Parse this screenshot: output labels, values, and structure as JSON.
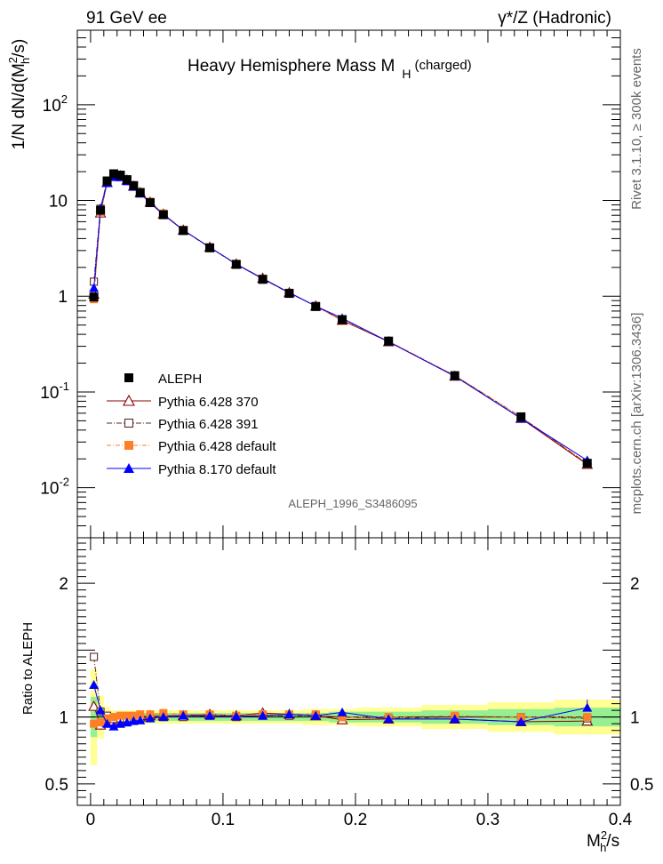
{
  "header": {
    "left": "91 GeV ee",
    "right": "γ*/Z (Hadronic)"
  },
  "side_texts": {
    "rivet": "Rivet 3.1.10, ≥ 300k events",
    "mcplots": "mcplots.cern.ch [arXiv:1306.3436]"
  },
  "chart_data": {
    "type": "line",
    "title": "Heavy Hemisphere Mass M",
    "title_sub": "H",
    "title_suffix": "(charged)",
    "analysis_id": "ALEPH_1996_S3486095",
    "scale": "log",
    "xlim": [
      -0.01,
      0.4
    ],
    "ylim": [
      0.003,
      600
    ],
    "xlabel_main": "M",
    "xlabel_sup": "2",
    "xlabel_sub": "h",
    "xlabel_tail": "/s",
    "ylabel_main": "1/N dN/d(M",
    "ylabel_sup": "2",
    "ylabel_sub": "h",
    "ylabel_tail": "/s)",
    "x_ticks": [
      "0",
      "0.1",
      "0.2",
      "0.3",
      "0.4"
    ],
    "y_ticks": [
      {
        "base": "10",
        "exp": "-2",
        "value": 0.01
      },
      {
        "base": "10",
        "exp": "-1",
        "value": 0.1
      },
      {
        "base": "1",
        "exp": "",
        "value": 1
      },
      {
        "base": "10",
        "exp": "",
        "value": 10
      },
      {
        "base": "10",
        "exp": "2",
        "value": 100
      }
    ],
    "x": [
      0.0025,
      0.0075,
      0.0125,
      0.0175,
      0.0225,
      0.0275,
      0.0325,
      0.0375,
      0.045,
      0.055,
      0.07,
      0.09,
      0.11,
      0.13,
      0.15,
      0.17,
      0.19,
      0.225,
      0.275,
      0.325,
      0.375
    ],
    "series": [
      {
        "name": "ALEPH",
        "color": "#000000",
        "marker": "square-filled",
        "dash": "none",
        "values": [
          0.98,
          7.9,
          16.0,
          19.0,
          18.4,
          16.5,
          14.3,
          12.1,
          9.5,
          7.1,
          4.85,
          3.2,
          2.15,
          1.5,
          1.07,
          0.78,
          0.57,
          0.34,
          0.148,
          0.055,
          0.018
        ]
      },
      {
        "name": "Pythia 6.428 370",
        "color": "#8b0000",
        "marker": "triangle-open",
        "dash": "none",
        "values": [
          1.05,
          7.4,
          15.4,
          18.4,
          18.1,
          16.3,
          14.1,
          12.1,
          9.6,
          7.2,
          4.9,
          3.25,
          2.17,
          1.54,
          1.09,
          0.79,
          0.56,
          0.335,
          0.146,
          0.053,
          0.0175
        ]
      },
      {
        "name": "Pythia 6.428 391",
        "color": "#5a2a2a",
        "marker": "square-open",
        "dash": "6,2,1,2",
        "values": [
          1.42,
          8.2,
          16.1,
          18.7,
          18.2,
          16.3,
          14.1,
          12.0,
          9.5,
          7.15,
          4.88,
          3.22,
          2.16,
          1.52,
          1.08,
          0.79,
          0.57,
          0.336,
          0.148,
          0.055,
          0.0178
        ]
      },
      {
        "name": "Pythia 6.428 default",
        "color": "#ff7f27",
        "marker": "square-filled",
        "dash": "5,2,1,2",
        "values": [
          0.93,
          7.6,
          15.8,
          19.0,
          18.6,
          16.6,
          14.4,
          12.3,
          9.7,
          7.3,
          4.95,
          3.25,
          2.18,
          1.53,
          1.09,
          0.79,
          0.57,
          0.34,
          0.149,
          0.055,
          0.018
        ]
      },
      {
        "name": "Pythia 8.170 default",
        "color": "#0000ff",
        "marker": "triangle-filled",
        "dash": "none",
        "values": [
          1.22,
          8.3,
          15.2,
          17.6,
          17.5,
          15.9,
          13.9,
          11.8,
          9.4,
          7.1,
          4.9,
          3.24,
          2.16,
          1.52,
          1.09,
          0.79,
          0.59,
          0.335,
          0.146,
          0.053,
          0.0193
        ]
      }
    ],
    "ratio": {
      "ylabel": "Ratio to ALEPH",
      "ylim": [
        0.34,
        2.34
      ],
      "y_ticks": [
        "0.5",
        "1",
        "2"
      ],
      "band_inner": [
        0.15,
        0.06,
        0.04,
        0.03,
        0.03,
        0.03,
        0.03,
        0.03,
        0.03,
        0.03,
        0.03,
        0.03,
        0.03,
        0.03,
        0.03,
        0.03,
        0.04,
        0.04,
        0.05,
        0.06,
        0.07
      ],
      "band_outer": [
        0.36,
        0.16,
        0.08,
        0.05,
        0.05,
        0.05,
        0.05,
        0.05,
        0.05,
        0.05,
        0.05,
        0.05,
        0.05,
        0.05,
        0.05,
        0.06,
        0.06,
        0.07,
        0.09,
        0.11,
        0.13
      ],
      "series_ratios": [
        [
          1.08,
          0.94,
          0.96,
          0.97,
          0.98,
          0.99,
          0.99,
          1.0,
          1.01,
          1.01,
          1.01,
          1.02,
          1.01,
          1.03,
          1.02,
          1.01,
          0.98,
          0.985,
          0.985,
          0.965,
          0.97
        ],
        [
          1.45,
          1.04,
          1.01,
          0.985,
          0.99,
          0.99,
          0.985,
          0.99,
          1.0,
          1.0,
          1.0,
          1.01,
          1.0,
          1.01,
          1.01,
          1.01,
          1.0,
          0.99,
          1.0,
          1.0,
          0.99
        ],
        [
          0.95,
          0.96,
          0.99,
          1.0,
          1.01,
          1.01,
          1.01,
          1.02,
          1.02,
          1.03,
          1.02,
          1.02,
          1.01,
          1.02,
          1.02,
          1.02,
          1.0,
          1.0,
          1.01,
          1.0,
          1.0
        ],
        [
          1.24,
          1.05,
          0.95,
          0.93,
          0.95,
          0.96,
          0.97,
          0.975,
          0.99,
          1.0,
          1.01,
          1.01,
          1.005,
          1.01,
          1.02,
          1.01,
          1.035,
          0.985,
          0.985,
          0.965,
          1.07
        ]
      ]
    }
  }
}
